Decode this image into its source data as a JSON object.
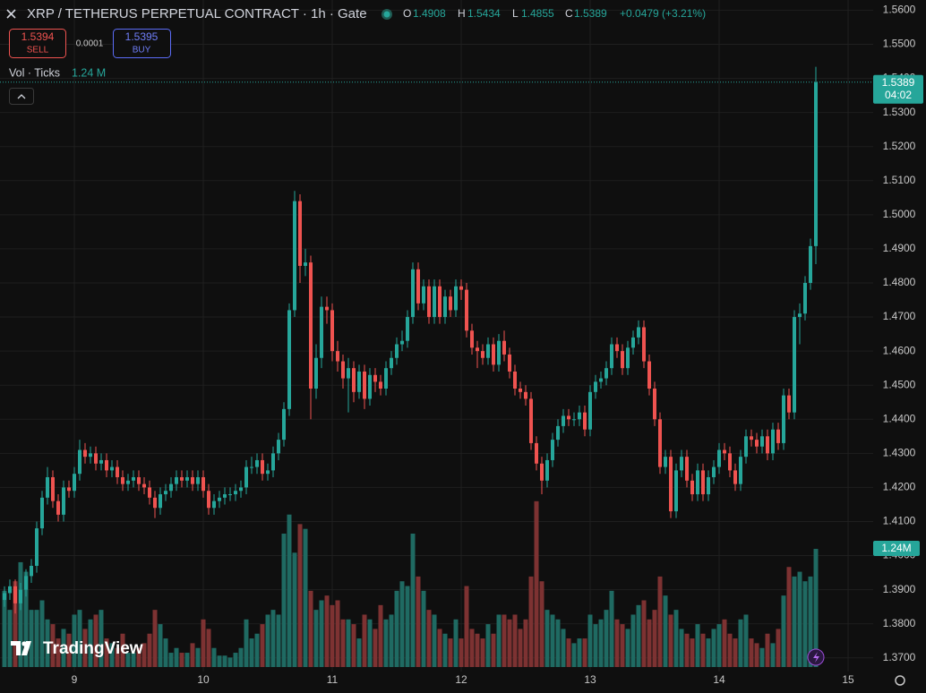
{
  "header": {
    "title": "XRP / TETHERUS PERPETUAL CONTRACT · 1h · Gate",
    "ohlc_labels": [
      "O",
      "H",
      "L",
      "C"
    ],
    "change": "+0.0479 (+3.21%)",
    "sell_price": 1.5394,
    "sell_label": "SELL",
    "spread": 0.0001,
    "buy_price": 1.5395,
    "buy_label": "BUY",
    "volume_name": "Vol · Ticks",
    "volume_legend": "1.24 M",
    "countdown": "04:02",
    "brand": "TradingView"
  },
  "chart_data": {
    "type": "candlestick",
    "up_color": "#26a69a",
    "down_color": "#ef5350",
    "volume_up_color": "#1f6a62",
    "volume_down_color": "#7d3232",
    "grid": true,
    "ylim": [
      1.366,
      1.563
    ],
    "volume_ylim": [
      0,
      7
    ],
    "volume_last_label": "1.24M",
    "yticks": [
      {
        "value": 1.37,
        "label": "1.3700"
      },
      {
        "value": 1.38,
        "label": "1.3800"
      },
      {
        "value": 1.39,
        "label": "1.3900"
      },
      {
        "value": 1.4,
        "label": "1.4000"
      },
      {
        "value": 1.41,
        "label": "1.4100"
      },
      {
        "value": 1.42,
        "label": "1.4200"
      },
      {
        "value": 1.43,
        "label": "1.4300"
      },
      {
        "value": 1.44,
        "label": "1.4400"
      },
      {
        "value": 1.45,
        "label": "1.4500"
      },
      {
        "value": 1.46,
        "label": "1.4600"
      },
      {
        "value": 1.47,
        "label": "1.4700"
      },
      {
        "value": 1.48,
        "label": "1.4800"
      },
      {
        "value": 1.49,
        "label": "1.4900"
      },
      {
        "value": 1.5,
        "label": "1.5000"
      },
      {
        "value": 1.51,
        "label": "1.5100"
      },
      {
        "value": 1.52,
        "label": "1.5200"
      },
      {
        "value": 1.53,
        "label": "1.5300"
      },
      {
        "value": 1.54,
        "label": "1.5400"
      },
      {
        "value": 1.55,
        "label": "1.5500"
      },
      {
        "value": 1.56,
        "label": "1.5600"
      }
    ],
    "categories": [
      null,
      null,
      null,
      null,
      null,
      null,
      null,
      null,
      null,
      null,
      null,
      null,
      null,
      "9",
      null,
      null,
      null,
      null,
      null,
      null,
      null,
      null,
      null,
      null,
      null,
      null,
      null,
      null,
      null,
      null,
      null,
      null,
      null,
      null,
      null,
      null,
      null,
      "10",
      null,
      null,
      null,
      null,
      null,
      null,
      null,
      null,
      null,
      null,
      null,
      null,
      null,
      null,
      null,
      null,
      null,
      null,
      null,
      null,
      null,
      null,
      null,
      "11",
      null,
      null,
      null,
      null,
      null,
      null,
      null,
      null,
      null,
      null,
      null,
      null,
      null,
      null,
      null,
      null,
      null,
      null,
      null,
      null,
      null,
      null,
      null,
      "12",
      null,
      null,
      null,
      null,
      null,
      null,
      null,
      null,
      null,
      null,
      null,
      null,
      null,
      null,
      null,
      null,
      null,
      null,
      null,
      null,
      null,
      null,
      null,
      "13",
      null,
      null,
      null,
      null,
      null,
      null,
      null,
      null,
      null,
      null,
      null,
      null,
      null,
      null,
      null,
      null,
      null,
      null,
      null,
      null,
      null,
      null,
      null,
      "14",
      null,
      null,
      null,
      null,
      null,
      null,
      null,
      null,
      null,
      null,
      null,
      null,
      null,
      null,
      null,
      null,
      null,
      null,
      null,
      null,
      null,
      null,
      null,
      "15"
    ],
    "open": [
      1.387,
      1.389,
      1.391,
      1.386,
      1.39,
      1.394,
      1.397,
      1.408,
      1.417,
      1.423,
      1.416,
      1.412,
      1.42,
      1.419,
      1.424,
      1.431,
      1.429,
      1.43,
      1.427,
      1.428,
      1.425,
      1.426,
      1.423,
      1.421,
      1.422,
      1.423,
      1.421,
      1.42,
      1.417,
      1.414,
      1.418,
      1.419,
      1.421,
      1.423,
      1.422,
      1.423,
      1.421,
      1.423,
      1.419,
      1.414,
      1.416,
      1.417,
      1.418,
      1.418,
      1.419,
      1.42,
      1.426,
      1.426,
      1.428,
      1.424,
      1.425,
      1.43,
      1.434,
      1.443,
      1.472,
      1.504,
      1.485,
      1.486,
      1.449,
      1.458,
      1.473,
      1.472,
      1.46,
      1.457,
      1.452,
      1.455,
      1.448,
      1.454,
      1.446,
      1.453,
      1.451,
      1.449,
      1.455,
      1.458,
      1.462,
      1.463,
      1.47,
      1.484,
      1.474,
      1.479,
      1.47,
      1.479,
      1.47,
      1.476,
      1.472,
      1.479,
      1.478,
      1.466,
      1.461,
      1.46,
      1.458,
      1.462,
      1.456,
      1.463,
      1.459,
      1.454,
      1.449,
      1.448,
      1.446,
      1.433,
      1.427,
      1.422,
      1.428,
      1.434,
      1.438,
      1.441,
      1.44,
      1.44,
      1.442,
      1.437,
      1.448,
      1.451,
      1.452,
      1.455,
      1.462,
      1.46,
      1.455,
      1.461,
      1.464,
      1.467,
      1.457,
      1.449,
      1.44,
      1.426,
      1.429,
      1.413,
      1.425,
      1.429,
      1.422,
      1.418,
      1.425,
      1.418,
      1.423,
      1.426,
      1.431,
      1.43,
      1.425,
      1.421,
      1.429,
      1.435,
      1.434,
      1.432,
      1.435,
      1.43,
      1.437,
      1.433,
      1.447,
      1.442,
      1.47,
      1.471,
      1.48,
      1.4908,
      null,
      null,
      null,
      null,
      null,
      null
    ],
    "high": [
      1.391,
      1.393,
      1.393,
      1.392,
      1.396,
      1.399,
      1.41,
      1.419,
      1.426,
      1.425,
      1.418,
      1.422,
      1.422,
      1.426,
      1.434,
      1.433,
      1.432,
      1.432,
      1.43,
      1.43,
      1.428,
      1.428,
      1.425,
      1.424,
      1.425,
      1.425,
      1.423,
      1.422,
      1.419,
      1.42,
      1.421,
      1.423,
      1.425,
      1.425,
      1.425,
      1.425,
      1.425,
      1.425,
      1.421,
      1.418,
      1.419,
      1.42,
      1.42,
      1.421,
      1.422,
      1.428,
      1.429,
      1.43,
      1.43,
      1.427,
      1.432,
      1.436,
      1.445,
      1.474,
      1.507,
      1.506,
      1.49,
      1.488,
      1.462,
      1.476,
      1.476,
      1.474,
      1.463,
      1.459,
      1.458,
      1.457,
      1.456,
      1.456,
      1.455,
      1.455,
      1.453,
      1.457,
      1.46,
      1.464,
      1.466,
      1.472,
      1.486,
      1.486,
      1.481,
      1.481,
      1.481,
      1.481,
      1.478,
      1.478,
      1.481,
      1.481,
      1.48,
      1.468,
      1.463,
      1.462,
      1.464,
      1.464,
      1.465,
      1.466,
      1.461,
      1.456,
      1.451,
      1.45,
      1.448,
      1.435,
      1.429,
      1.43,
      1.436,
      1.44,
      1.443,
      1.443,
      1.442,
      1.444,
      1.444,
      1.45,
      1.453,
      1.454,
      1.457,
      1.464,
      1.464,
      1.462,
      1.463,
      1.466,
      1.469,
      1.469,
      1.459,
      1.451,
      1.442,
      1.431,
      1.431,
      1.427,
      1.431,
      1.431,
      1.424,
      1.427,
      1.427,
      1.425,
      1.428,
      1.433,
      1.433,
      1.432,
      1.427,
      1.431,
      1.437,
      1.437,
      1.436,
      1.437,
      1.437,
      1.439,
      1.439,
      1.449,
      1.449,
      1.472,
      1.474,
      1.482,
      1.493,
      1.5434,
      null,
      null,
      null,
      null,
      null,
      null
    ],
    "low": [
      1.385,
      1.387,
      1.383,
      1.384,
      1.388,
      1.392,
      1.395,
      1.406,
      1.415,
      1.414,
      1.41,
      1.41,
      1.417,
      1.417,
      1.422,
      1.427,
      1.427,
      1.425,
      1.425,
      1.423,
      1.423,
      1.421,
      1.419,
      1.419,
      1.42,
      1.419,
      1.418,
      1.415,
      1.411,
      1.412,
      1.416,
      1.417,
      1.419,
      1.42,
      1.42,
      1.419,
      1.419,
      1.417,
      1.412,
      1.412,
      1.414,
      1.415,
      1.416,
      1.416,
      1.417,
      1.418,
      1.424,
      1.424,
      1.422,
      1.422,
      1.423,
      1.428,
      1.432,
      1.441,
      1.47,
      1.48,
      1.482,
      1.44,
      1.446,
      1.455,
      1.468,
      1.457,
      1.454,
      1.449,
      1.442,
      1.445,
      1.446,
      1.443,
      1.444,
      1.448,
      1.447,
      1.447,
      1.453,
      1.456,
      1.46,
      1.461,
      1.468,
      1.472,
      1.472,
      1.468,
      1.468,
      1.468,
      1.468,
      1.47,
      1.47,
      1.475,
      1.464,
      1.459,
      1.455,
      1.456,
      1.456,
      1.454,
      1.454,
      1.457,
      1.452,
      1.447,
      1.446,
      1.444,
      1.431,
      1.425,
      1.418,
      1.42,
      1.426,
      1.432,
      1.436,
      1.438,
      1.438,
      1.438,
      1.435,
      1.435,
      1.446,
      1.449,
      1.45,
      1.453,
      1.458,
      1.453,
      1.453,
      1.459,
      1.462,
      1.455,
      1.447,
      1.438,
      1.424,
      1.424,
      1.411,
      1.411,
      1.423,
      1.42,
      1.416,
      1.416,
      1.416,
      1.416,
      1.421,
      1.424,
      1.428,
      1.423,
      1.419,
      1.419,
      1.427,
      1.432,
      1.43,
      1.43,
      1.428,
      1.428,
      1.431,
      1.431,
      1.44,
      1.44,
      1.462,
      1.469,
      1.478,
      1.4855,
      null,
      null,
      null,
      null,
      null,
      null
    ],
    "close": [
      1.389,
      1.391,
      1.386,
      1.39,
      1.394,
      1.397,
      1.408,
      1.417,
      1.423,
      1.416,
      1.412,
      1.42,
      1.419,
      1.424,
      1.431,
      1.429,
      1.43,
      1.427,
      1.428,
      1.425,
      1.426,
      1.423,
      1.421,
      1.422,
      1.423,
      1.421,
      1.42,
      1.417,
      1.414,
      1.418,
      1.419,
      1.421,
      1.423,
      1.422,
      1.423,
      1.421,
      1.423,
      1.419,
      1.414,
      1.416,
      1.417,
      1.418,
      1.418,
      1.419,
      1.42,
      1.426,
      1.426,
      1.428,
      1.424,
      1.425,
      1.43,
      1.434,
      1.443,
      1.472,
      1.504,
      1.485,
      1.486,
      1.449,
      1.458,
      1.473,
      1.472,
      1.46,
      1.457,
      1.452,
      1.455,
      1.448,
      1.454,
      1.446,
      1.453,
      1.451,
      1.449,
      1.455,
      1.458,
      1.462,
      1.463,
      1.47,
      1.484,
      1.474,
      1.479,
      1.47,
      1.479,
      1.47,
      1.476,
      1.472,
      1.479,
      1.478,
      1.466,
      1.461,
      1.46,
      1.458,
      1.462,
      1.456,
      1.463,
      1.459,
      1.454,
      1.449,
      1.448,
      1.446,
      1.433,
      1.427,
      1.422,
      1.428,
      1.434,
      1.438,
      1.441,
      1.44,
      1.44,
      1.442,
      1.437,
      1.448,
      1.451,
      1.452,
      1.455,
      1.462,
      1.46,
      1.455,
      1.461,
      1.464,
      1.467,
      1.457,
      1.449,
      1.44,
      1.426,
      1.429,
      1.413,
      1.425,
      1.429,
      1.422,
      1.418,
      1.425,
      1.418,
      1.423,
      1.426,
      1.431,
      1.43,
      1.425,
      1.421,
      1.429,
      1.435,
      1.434,
      1.432,
      1.435,
      1.43,
      1.437,
      1.433,
      1.447,
      1.442,
      1.47,
      1.471,
      1.48,
      1.4908,
      1.5389,
      null,
      null,
      null,
      null,
      null,
      null
    ],
    "volume": [
      0.8,
      0.6,
      0.9,
      1.1,
      1.0,
      0.6,
      0.6,
      0.7,
      0.5,
      0.45,
      0.3,
      0.4,
      0.35,
      0.55,
      0.6,
      0.4,
      0.5,
      0.55,
      0.6,
      0.3,
      0.25,
      0.2,
      0.35,
      0.15,
      0.15,
      0.2,
      0.25,
      0.35,
      0.6,
      0.45,
      0.3,
      0.15,
      0.2,
      0.15,
      0.15,
      0.25,
      0.2,
      0.5,
      0.4,
      0.2,
      0.12,
      0.12,
      0.1,
      0.15,
      0.2,
      0.5,
      0.3,
      0.35,
      0.45,
      0.55,
      0.6,
      0.55,
      1.4,
      1.6,
      1.2,
      1.5,
      1.45,
      0.8,
      0.6,
      0.7,
      0.75,
      0.65,
      0.7,
      0.5,
      0.5,
      0.45,
      0.3,
      0.55,
      0.5,
      0.4,
      0.65,
      0.5,
      0.55,
      0.8,
      0.9,
      0.85,
      1.4,
      0.95,
      0.8,
      0.6,
      0.55,
      0.4,
      0.35,
      0.3,
      0.5,
      0.3,
      0.85,
      0.4,
      0.35,
      0.3,
      0.45,
      0.35,
      0.55,
      0.55,
      0.5,
      0.55,
      0.4,
      0.5,
      0.95,
      1.74,
      0.9,
      0.6,
      0.55,
      0.5,
      0.4,
      0.3,
      0.25,
      0.3,
      0.3,
      0.55,
      0.45,
      0.5,
      0.6,
      0.8,
      0.5,
      0.45,
      0.4,
      0.55,
      0.65,
      0.7,
      0.5,
      0.6,
      0.95,
      0.75,
      0.55,
      0.6,
      0.4,
      0.35,
      0.3,
      0.45,
      0.35,
      0.3,
      0.4,
      0.45,
      0.5,
      0.35,
      0.3,
      0.5,
      0.55,
      0.3,
      0.25,
      0.2,
      0.35,
      0.25,
      0.4,
      0.75,
      1.05,
      0.95,
      1.0,
      0.9,
      0.95,
      1.24,
      null,
      null,
      null,
      null,
      null,
      null
    ]
  }
}
